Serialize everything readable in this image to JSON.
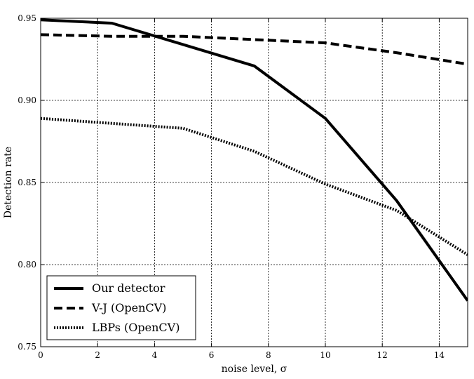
{
  "chart_data": {
    "type": "line",
    "title": "",
    "xlabel": "noise level, σ",
    "ylabel": "Detection rate",
    "xlim": [
      0,
      15
    ],
    "ylim": [
      0.75,
      0.95
    ],
    "xticks": [
      0,
      2,
      4,
      6,
      8,
      10,
      12,
      14
    ],
    "yticks": [
      0.75,
      0.8,
      0.85,
      0.9,
      0.95
    ],
    "xtick_labels": [
      "0",
      "2",
      "4",
      "6",
      "8",
      "10",
      "12",
      "14"
    ],
    "ytick_labels": [
      "0.75",
      "0.80",
      "0.85",
      "0.90",
      "0.95"
    ],
    "grid": true,
    "legend_position": "bottom-left",
    "series": [
      {
        "name": "Our detector",
        "style": "solid",
        "x": [
          0,
          2.5,
          5,
          7.5,
          10,
          12.5,
          15
        ],
        "y": [
          0.949,
          0.947,
          0.934,
          0.921,
          0.889,
          0.839,
          0.778
        ]
      },
      {
        "name": "V-J (OpenCV)",
        "style": "dashed",
        "x": [
          0,
          2.5,
          5,
          7.5,
          10,
          12.5,
          15
        ],
        "y": [
          0.94,
          0.939,
          0.939,
          0.937,
          0.935,
          0.929,
          0.922
        ]
      },
      {
        "name": "LBPs (OpenCV)",
        "style": "dotted",
        "x": [
          0,
          2.5,
          5,
          7.5,
          10,
          12.5,
          15
        ],
        "y": [
          0.889,
          0.886,
          0.883,
          0.869,
          0.849,
          0.833,
          0.806
        ]
      }
    ]
  }
}
